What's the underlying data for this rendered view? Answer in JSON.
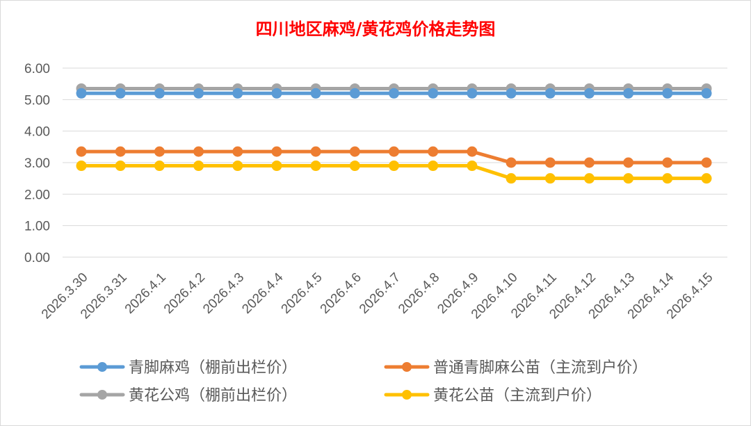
{
  "chart_data": {
    "type": "line",
    "title": "四川地区麻鸡/黄花鸡价格走势图",
    "categories": [
      "2026.3.30",
      "2026.3.31",
      "2026.4.1",
      "2026.4.2",
      "2026.4.3",
      "2026.4.4",
      "2026.4.5",
      "2026.4.6",
      "2026.4.7",
      "2026.4.8",
      "2026.4.9",
      "2026.4.10",
      "2026.4.11",
      "2026.4.12",
      "2026.4.13",
      "2026.4.14",
      "2026.4.15"
    ],
    "ylim": [
      0,
      6
    ],
    "yticks": [
      "0.00",
      "1.00",
      "2.00",
      "3.00",
      "4.00",
      "5.00",
      "6.00"
    ],
    "grid": true,
    "legend_position": "bottom",
    "series": [
      {
        "name": "青脚麻鸡（棚前出栏价）",
        "color": "#5b9bd5",
        "values": [
          5.2,
          5.2,
          5.2,
          5.2,
          5.2,
          5.2,
          5.2,
          5.2,
          5.2,
          5.2,
          5.2,
          5.2,
          5.2,
          5.2,
          5.2,
          5.2,
          5.2
        ]
      },
      {
        "name": "普通青脚麻公苗（主流到户价）",
        "color": "#ed7d31",
        "values": [
          3.35,
          3.35,
          3.35,
          3.35,
          3.35,
          3.35,
          3.35,
          3.35,
          3.35,
          3.35,
          3.35,
          3.0,
          3.0,
          3.0,
          3.0,
          3.0,
          3.0
        ]
      },
      {
        "name": "黄花公鸡（棚前出栏价）",
        "color": "#a5a5a5",
        "values": [
          5.35,
          5.35,
          5.35,
          5.35,
          5.35,
          5.35,
          5.35,
          5.35,
          5.35,
          5.35,
          5.35,
          5.35,
          5.35,
          5.35,
          5.35,
          5.35,
          5.35
        ]
      },
      {
        "name": "黄花公苗（主流到户价）",
        "color": "#ffc000",
        "values": [
          2.9,
          2.9,
          2.9,
          2.9,
          2.9,
          2.9,
          2.9,
          2.9,
          2.9,
          2.9,
          2.9,
          2.5,
          2.5,
          2.5,
          2.5,
          2.5,
          2.5
        ]
      }
    ],
    "title_color": "#ff0000"
  }
}
